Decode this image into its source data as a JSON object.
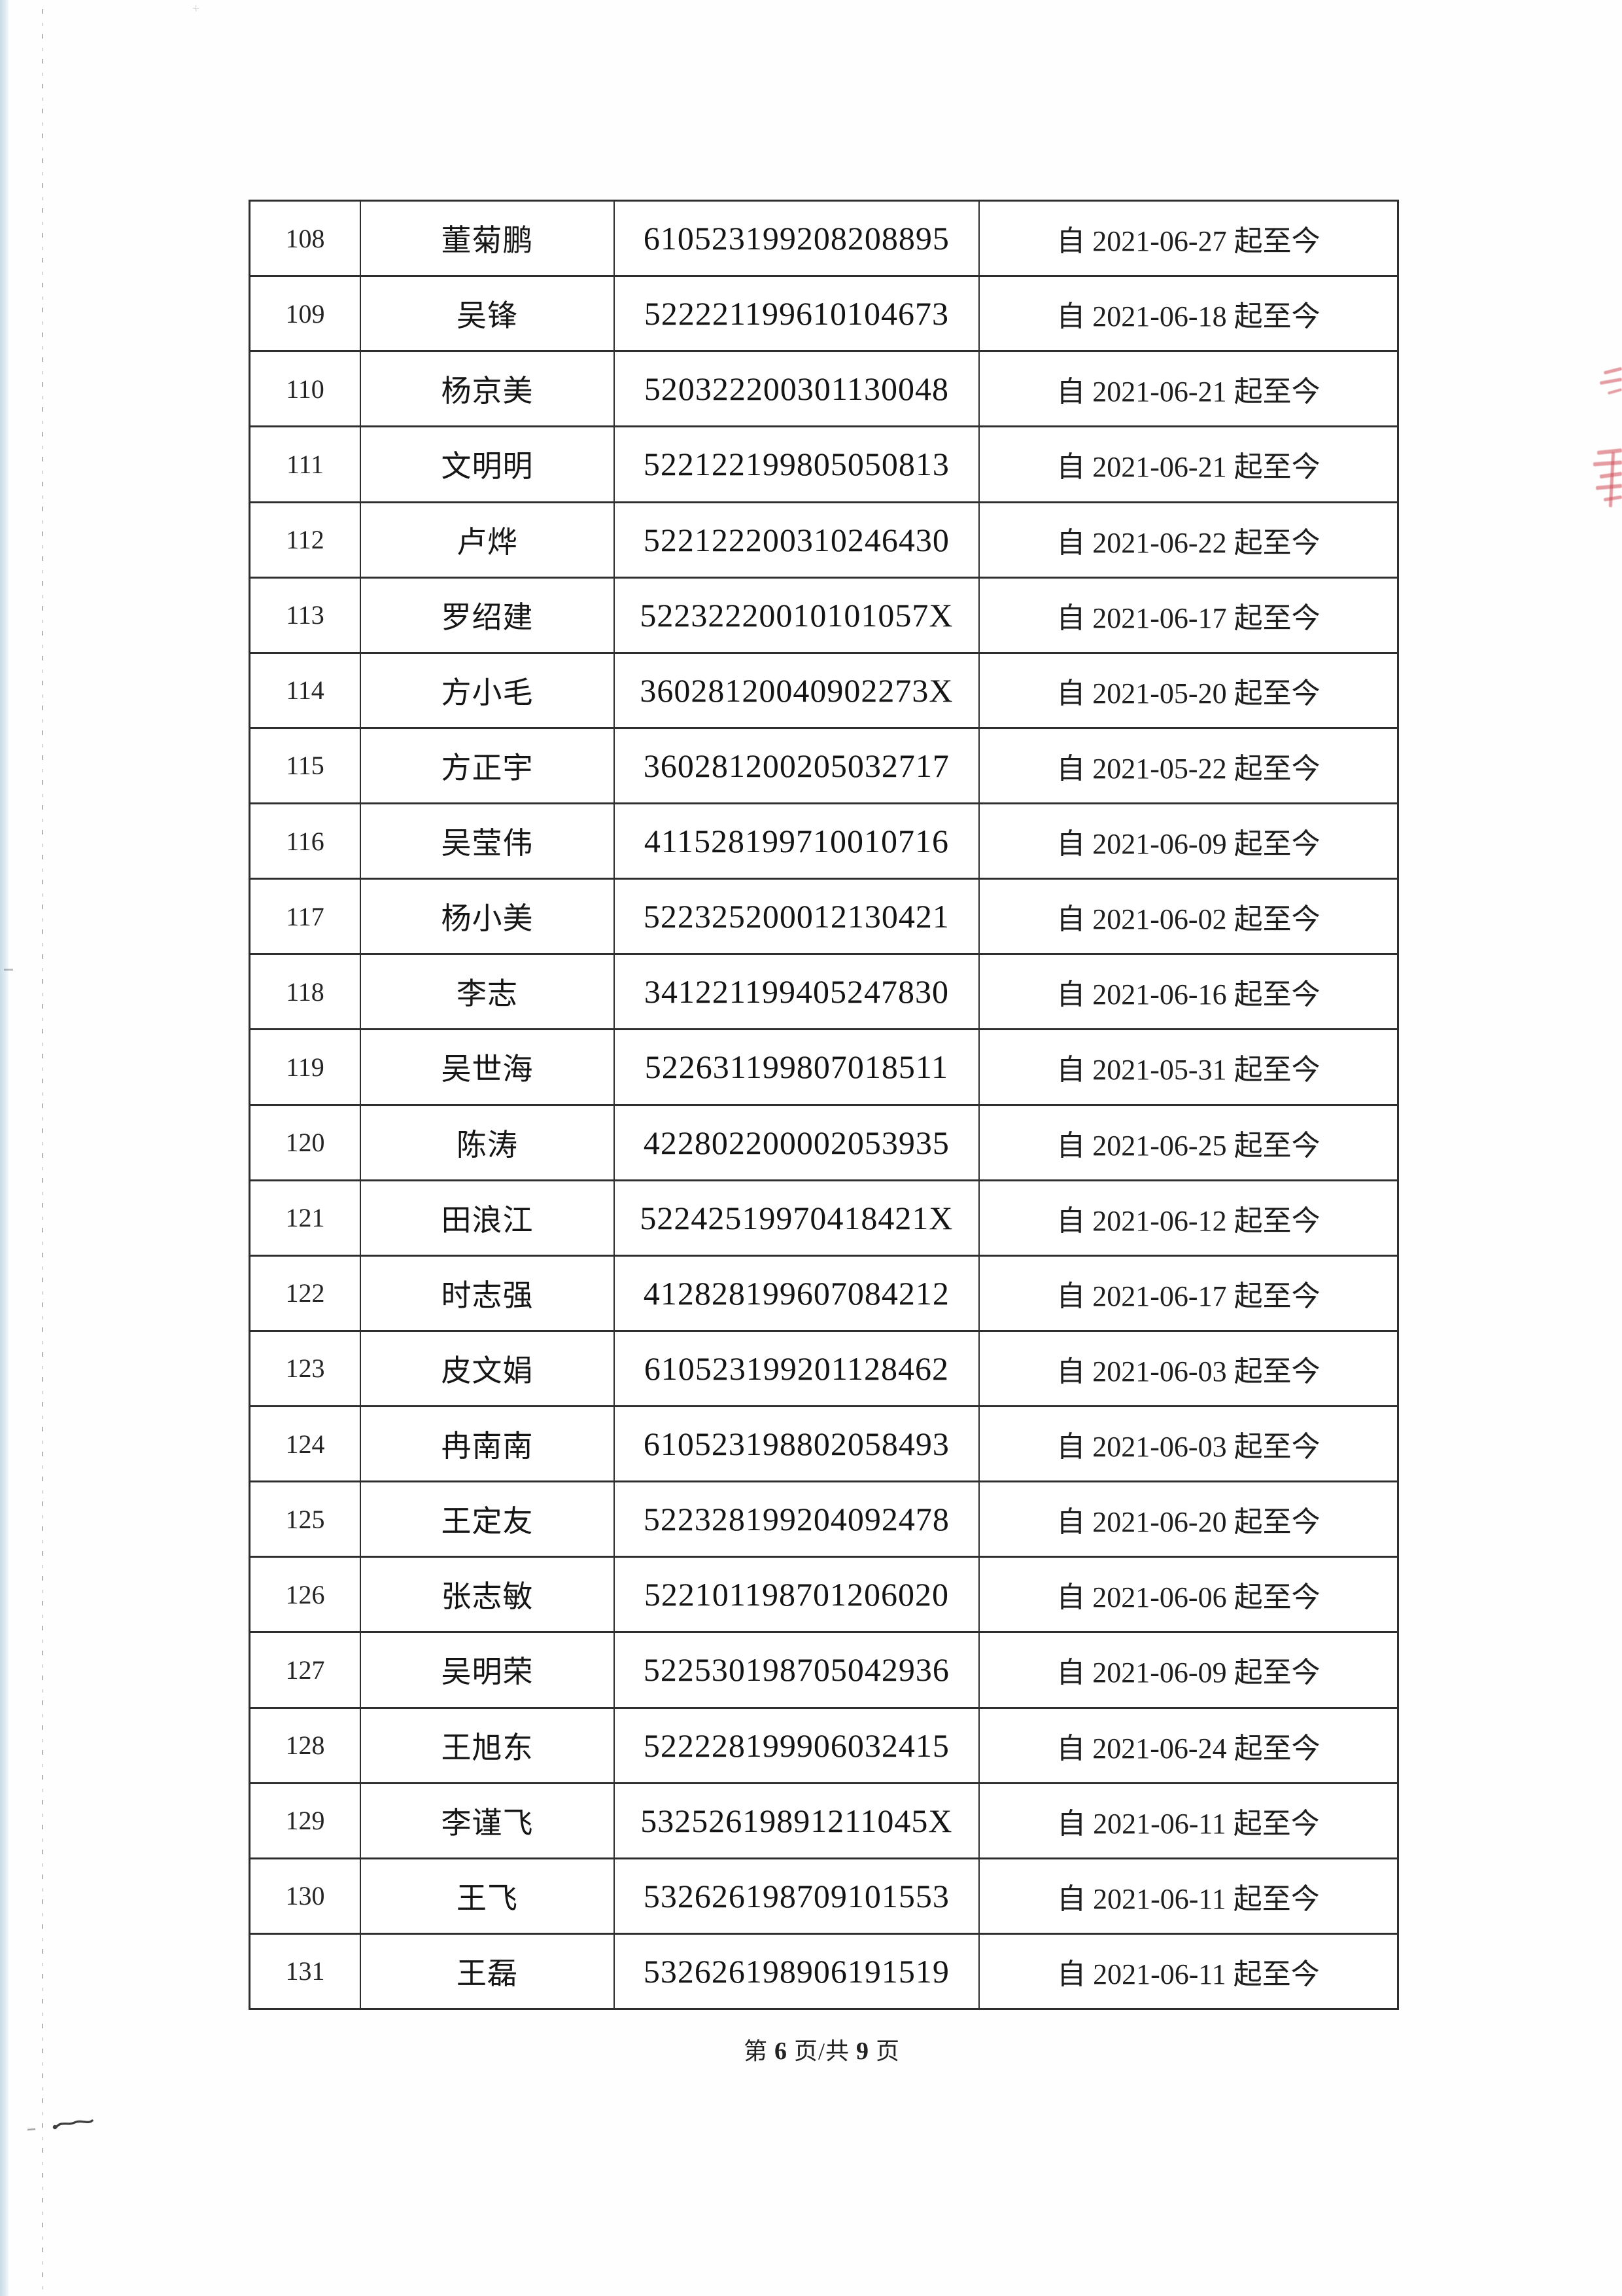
{
  "colors": {
    "seal_red": "#ce4a56",
    "edge_band_blue": "#dde9f0",
    "table_border": "#2e2e2e"
  },
  "footer": {
    "prefix": "第",
    "page_number": "6",
    "infix": "页/共",
    "total_pages": "9",
    "suffix": "页"
  },
  "table": {
    "rows": [
      {
        "index": "108",
        "name": "董菊鹏",
        "id_number": "610523199208208895",
        "period": "自 2021-06-27 起至今"
      },
      {
        "index": "109",
        "name": "吴锋",
        "id_number": "522221199610104673",
        "period": "自 2021-06-18 起至今"
      },
      {
        "index": "110",
        "name": "杨京美",
        "id_number": "520322200301130048",
        "period": "自 2021-06-21 起至今"
      },
      {
        "index": "111",
        "name": "文明明",
        "id_number": "522122199805050813",
        "period": "自 2021-06-21 起至今"
      },
      {
        "index": "112",
        "name": "卢烨",
        "id_number": "522122200310246430",
        "period": "自 2021-06-22 起至今"
      },
      {
        "index": "113",
        "name": "罗绍建",
        "id_number": "52232220010101057X",
        "period": "自 2021-06-17 起至今"
      },
      {
        "index": "114",
        "name": "方小毛",
        "id_number": "36028120040902273X",
        "period": "自 2021-05-20 起至今"
      },
      {
        "index": "115",
        "name": "方正宇",
        "id_number": "360281200205032717",
        "period": "自 2021-05-22 起至今"
      },
      {
        "index": "116",
        "name": "吴莹伟",
        "id_number": "411528199710010716",
        "period": "自 2021-06-09 起至今"
      },
      {
        "index": "117",
        "name": "杨小美",
        "id_number": "522325200012130421",
        "period": "自 2021-06-02 起至今"
      },
      {
        "index": "118",
        "name": "李志",
        "id_number": "341221199405247830",
        "period": "自 2021-06-16 起至今"
      },
      {
        "index": "119",
        "name": "吴世海",
        "id_number": "522631199807018511",
        "period": "自 2021-05-31 起至今"
      },
      {
        "index": "120",
        "name": "陈涛",
        "id_number": "422802200002053935",
        "period": "自 2021-06-25 起至今"
      },
      {
        "index": "121",
        "name": "田浪江",
        "id_number": "52242519970418421X",
        "period": "自 2021-06-12 起至今"
      },
      {
        "index": "122",
        "name": "时志强",
        "id_number": "412828199607084212",
        "period": "自 2021-06-17 起至今"
      },
      {
        "index": "123",
        "name": "皮文娟",
        "id_number": "610523199201128462",
        "period": "自 2021-06-03 起至今"
      },
      {
        "index": "124",
        "name": "冉南南",
        "id_number": "610523198802058493",
        "period": "自 2021-06-03 起至今"
      },
      {
        "index": "125",
        "name": "王定友",
        "id_number": "522328199204092478",
        "period": "自 2021-06-20 起至今"
      },
      {
        "index": "126",
        "name": "张志敏",
        "id_number": "522101198701206020",
        "period": "自 2021-06-06 起至今"
      },
      {
        "index": "127",
        "name": "吴明荣",
        "id_number": "522530198705042936",
        "period": "自 2021-06-09 起至今"
      },
      {
        "index": "128",
        "name": "王旭东",
        "id_number": "522228199906032415",
        "period": "自 2021-06-24 起至今"
      },
      {
        "index": "129",
        "name": "李谨飞",
        "id_number": "53252619891211045X",
        "period": "自 2021-06-11 起至今"
      },
      {
        "index": "130",
        "name": "王飞",
        "id_number": "532626198709101553",
        "period": "自 2021-06-11 起至今"
      },
      {
        "index": "131",
        "name": "王磊",
        "id_number": "532626198906191519",
        "period": "自 2021-06-11 起至今"
      }
    ]
  }
}
